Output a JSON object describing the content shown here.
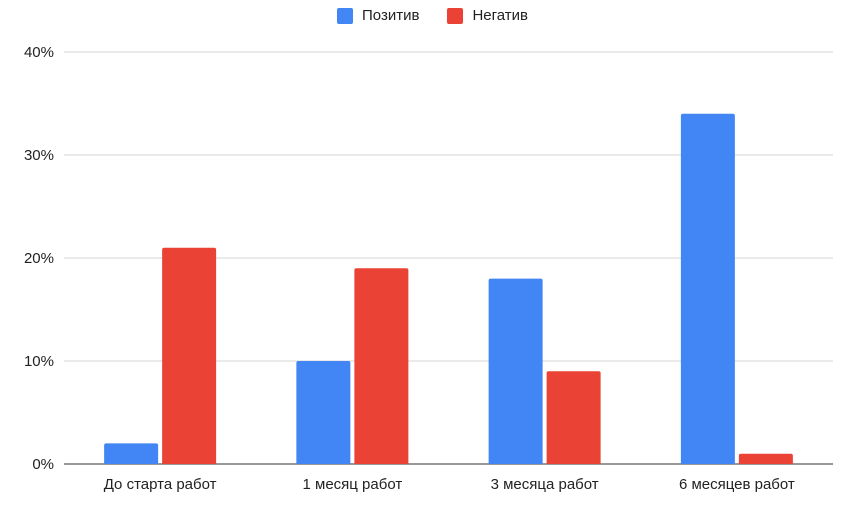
{
  "chart_data": {
    "type": "bar",
    "categories": [
      "До старта работ",
      "1 месяц работ",
      "3 месяца работ",
      "6 месяцев работ"
    ],
    "series": [
      {
        "name": "Позитив",
        "color": "#4285F4",
        "values": [
          2,
          10,
          18,
          34
        ]
      },
      {
        "name": "Негатив",
        "color": "#EA4335",
        "values": [
          21,
          19,
          9,
          1
        ]
      }
    ],
    "y_ticks": [
      "0%",
      "10%",
      "20%",
      "30%",
      "40%"
    ],
    "ylim": [
      0,
      40
    ],
    "y_unit": "%",
    "grid": true,
    "legend_position": "top-center"
  }
}
